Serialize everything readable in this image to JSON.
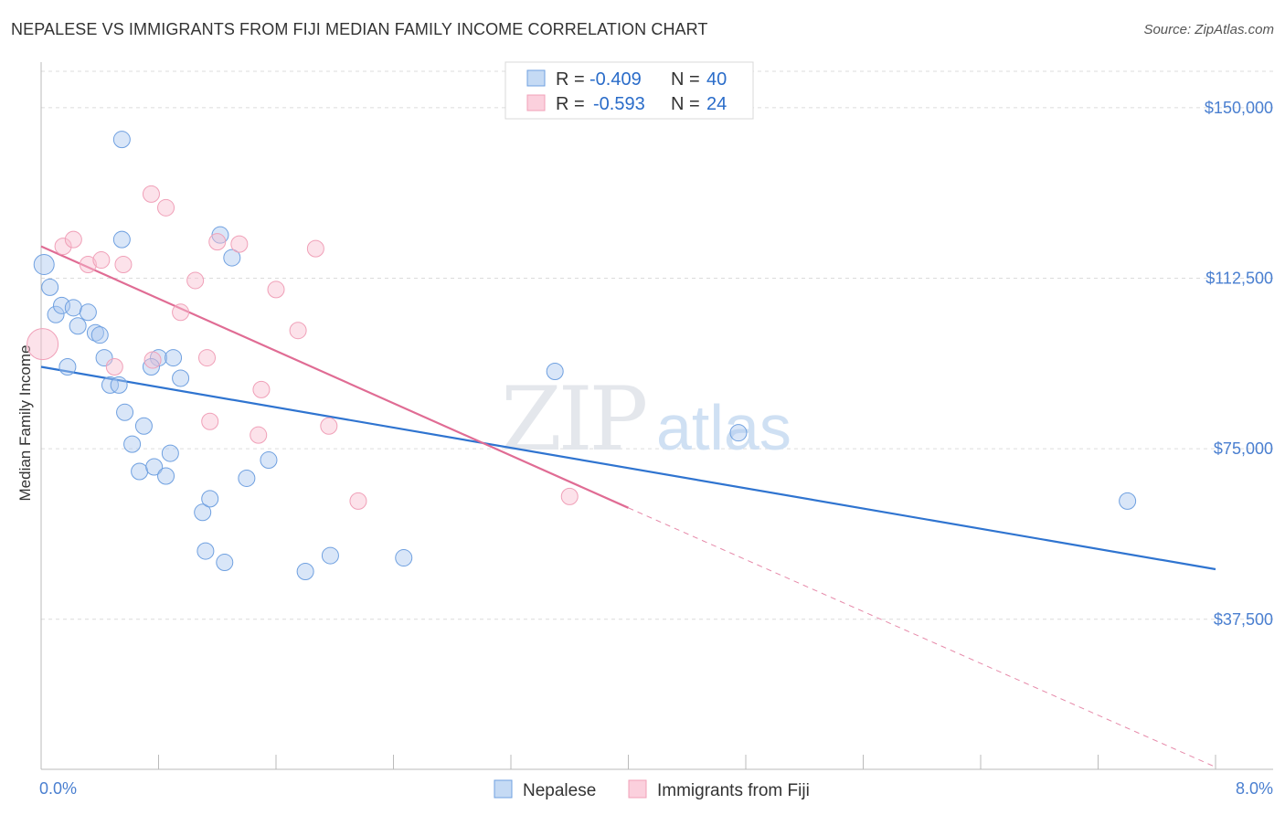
{
  "title": "NEPALESE VS IMMIGRANTS FROM FIJI MEDIAN FAMILY INCOME CORRELATION CHART",
  "source": "Source: ZipAtlas.com",
  "watermark": {
    "part1": "ZIP",
    "part2": "atlas"
  },
  "legend": {
    "rows": [
      {
        "r_label": "R =",
        "r_value": "-0.409",
        "n_label": "N =",
        "n_value": "40"
      },
      {
        "r_label": "R =",
        "r_value": "-0.593",
        "n_label": "N =",
        "n_value": "24"
      }
    ]
  },
  "chart_data": {
    "type": "scatter",
    "title": "NEPALESE VS IMMIGRANTS FROM FIJI MEDIAN FAMILY INCOME CORRELATION CHART",
    "xlabel": "",
    "ylabel": "Median Family Income",
    "xlim": [
      0,
      8.0
    ],
    "ylim": [
      4500,
      158000
    ],
    "x_tick_labels": [
      "0.0%",
      "8.0%"
    ],
    "y_ticks": [
      37500,
      75000,
      112500,
      150000
    ],
    "y_tick_labels": [
      "$37,500",
      "$75,000",
      "$112,500",
      "$150,000"
    ],
    "grid": true,
    "legend_position": "top-center",
    "colors": {
      "nepalese": "#6fa0e0",
      "fiji": "#f0a0b8",
      "nepalese_line": "#2f74d0",
      "fiji_line": "#e06c94"
    },
    "series": [
      {
        "name": "Nepalese",
        "color": "#6fa0e0",
        "points": [
          [
            0.02,
            115500
          ],
          [
            0.06,
            110500
          ],
          [
            0.1,
            104500
          ],
          [
            0.14,
            106500
          ],
          [
            0.22,
            106000
          ],
          [
            0.32,
            105000
          ],
          [
            0.25,
            102000
          ],
          [
            0.37,
            100500
          ],
          [
            0.4,
            100000
          ],
          [
            0.18,
            93000
          ],
          [
            0.43,
            95000
          ],
          [
            0.8,
            95000
          ],
          [
            0.75,
            93000
          ],
          [
            0.47,
            89000
          ],
          [
            0.53,
            89000
          ],
          [
            0.95,
            90500
          ],
          [
            0.57,
            83000
          ],
          [
            0.7,
            80000
          ],
          [
            0.62,
            76000
          ],
          [
            0.88,
            74000
          ],
          [
            0.67,
            70000
          ],
          [
            0.77,
            71000
          ],
          [
            0.85,
            69000
          ],
          [
            0.55,
            121000
          ],
          [
            1.22,
            122000
          ],
          [
            1.3,
            117000
          ],
          [
            0.9,
            95000
          ],
          [
            1.1,
            61000
          ],
          [
            1.15,
            64000
          ],
          [
            1.4,
            68500
          ],
          [
            1.55,
            72500
          ],
          [
            1.12,
            52500
          ],
          [
            1.25,
            50000
          ],
          [
            1.8,
            48000
          ],
          [
            1.97,
            51500
          ],
          [
            2.47,
            51000
          ],
          [
            3.5,
            92000
          ],
          [
            4.75,
            78500
          ],
          [
            7.4,
            63500
          ],
          [
            0.55,
            143000
          ]
        ],
        "trend": {
          "x": [
            0.0,
            8.0
          ],
          "y": [
            93000,
            48500
          ]
        }
      },
      {
        "name": "Immigrants from Fiji",
        "color": "#f0a0b8",
        "points": [
          [
            0.01,
            98000
          ],
          [
            0.15,
            119500
          ],
          [
            0.22,
            121000
          ],
          [
            0.32,
            115500
          ],
          [
            0.41,
            116500
          ],
          [
            0.56,
            115500
          ],
          [
            0.75,
            131000
          ],
          [
            0.85,
            128000
          ],
          [
            0.95,
            105000
          ],
          [
            1.05,
            112000
          ],
          [
            1.13,
            95000
          ],
          [
            1.2,
            120500
          ],
          [
            1.35,
            120000
          ],
          [
            1.6,
            110000
          ],
          [
            1.75,
            101000
          ],
          [
            1.87,
            119000
          ],
          [
            1.5,
            88000
          ],
          [
            1.15,
            81000
          ],
          [
            1.48,
            78000
          ],
          [
            1.96,
            80000
          ],
          [
            2.16,
            63500
          ],
          [
            0.76,
            94500
          ],
          [
            0.5,
            93000
          ],
          [
            3.6,
            64500
          ]
        ],
        "trend": {
          "x": [
            0.0,
            4.0
          ],
          "y": [
            119500,
            62000
          ]
        },
        "trend_dashed": {
          "x": [
            4.0,
            8.0
          ],
          "y": [
            62000,
            5000
          ]
        }
      }
    ]
  },
  "bottom_legend": {
    "items": [
      "Nepalese",
      "Immigrants from Fiji"
    ]
  }
}
